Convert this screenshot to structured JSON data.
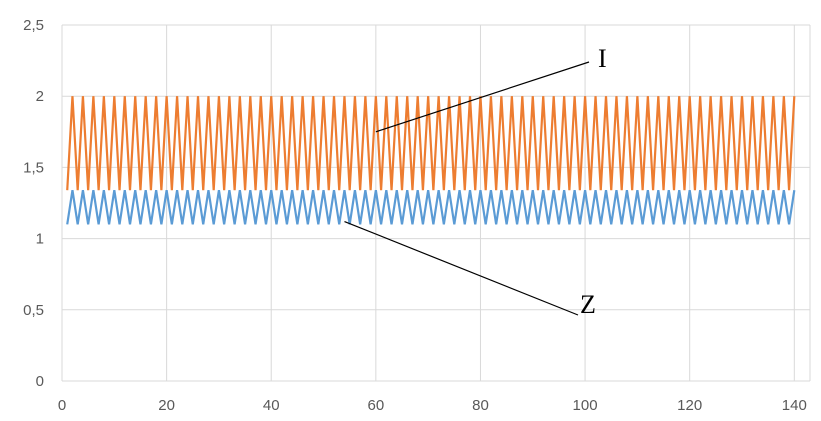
{
  "chart_data": {
    "type": "line",
    "x": {
      "min": 1,
      "max": 140,
      "step": 1
    },
    "xlim": [
      0,
      143
    ],
    "ylim": [
      0,
      2.5
    ],
    "x_ticks": [
      0,
      20,
      40,
      60,
      80,
      100,
      120,
      140
    ],
    "x_tick_labels": [
      "0",
      "20",
      "40",
      "60",
      "80",
      "100",
      "120",
      "140"
    ],
    "y_ticks": [
      0,
      0.5,
      1,
      1.5,
      2,
      2.5
    ],
    "y_tick_labels": [
      "0",
      "0,5",
      "1",
      "1,5",
      "2",
      "2,5"
    ],
    "grid": true,
    "series": [
      {
        "key": "Z",
        "color": "#5B9BD5",
        "pattern": "alternating",
        "values_alternate": [
          1.1,
          1.34
        ]
      },
      {
        "key": "I",
        "color": "#ED7D31",
        "pattern": "alternating",
        "values_alternate": [
          1.34,
          2.0
        ]
      }
    ],
    "annotations": [
      {
        "label": "I",
        "points_to_series": "I",
        "target": {
          "x": 60,
          "y": 1.75
        }
      },
      {
        "label": "Z",
        "points_to_series": "Z",
        "target": {
          "x": 54,
          "y": 1.12
        }
      }
    ],
    "colors": {
      "grid": "#D9D9D9",
      "tick_text": "#595959",
      "annotation": "#000000"
    }
  }
}
